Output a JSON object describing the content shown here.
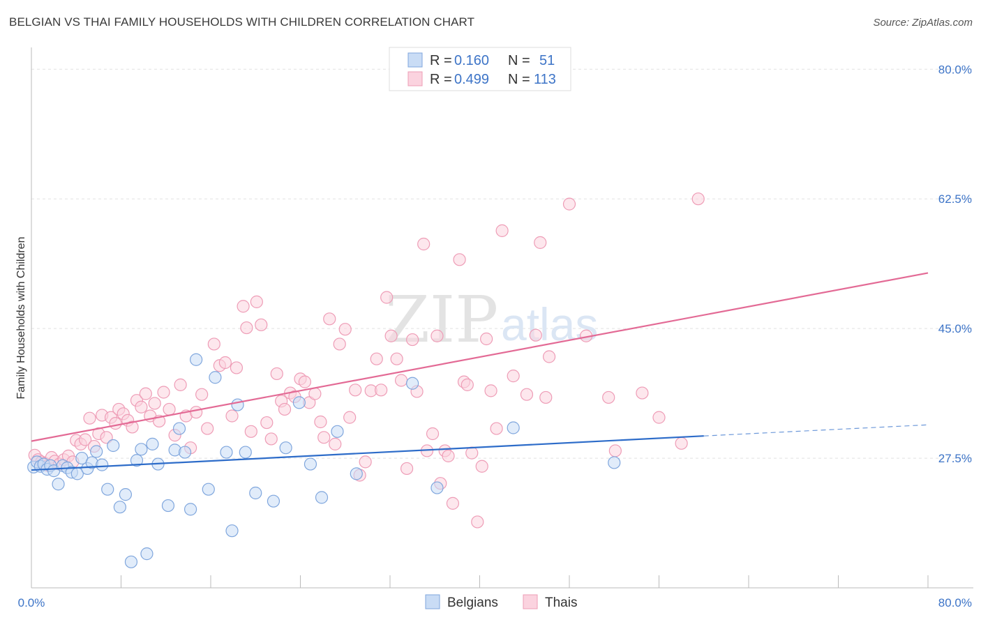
{
  "header": {
    "title": "BELGIAN VS THAI FAMILY HOUSEHOLDS WITH CHILDREN CORRELATION CHART",
    "source": "Source: ZipAtlas.com"
  },
  "watermark": {
    "zip": "ZIP",
    "atlas": "atlas"
  },
  "chart_data": {
    "type": "scatter",
    "title": "BELGIAN VS THAI FAMILY HOUSEHOLDS WITH CHILDREN CORRELATION CHART",
    "xlabel": "",
    "ylabel": "Family Households with Children",
    "xlim": [
      0,
      80
    ],
    "ylim": [
      10,
      82
    ],
    "x_tick_labels": [
      "0.0%",
      "80.0%"
    ],
    "y_ticks": [
      {
        "value": 27.5,
        "label": "27.5%"
      },
      {
        "value": 45.0,
        "label": "45.0%"
      },
      {
        "value": 62.5,
        "label": "62.5%"
      },
      {
        "value": 80.0,
        "label": "80.0%"
      }
    ],
    "colors": {
      "belgians_fill": "#c9dcf5",
      "belgians_stroke": "#7fa6dd",
      "belgians_line": "#2d6cc9",
      "thais_fill": "#fbd3df",
      "thais_stroke": "#ee9cb6",
      "thais_line": "#e36a95",
      "axis_text": "#3d74c7",
      "grid": "#e2e2e2"
    },
    "legend": {
      "r_label": "R =",
      "n_label": "N =",
      "entries": [
        {
          "series": "Belgians",
          "r": "0.160",
          "n": "51"
        },
        {
          "series": "Thais",
          "r": "0.499",
          "n": "113"
        }
      ]
    },
    "series": [
      {
        "name": "Belgians",
        "trend": {
          "x0": 0,
          "y0": 25.9,
          "x1": 60,
          "y1": 30.5,
          "x_dash_end": 80,
          "y_dash_end": 32.0
        },
        "points": [
          [
            0.2,
            26.3
          ],
          [
            0.5,
            27.0
          ],
          [
            0.8,
            26.4
          ],
          [
            1.1,
            26.7
          ],
          [
            1.4,
            26.0
          ],
          [
            1.7,
            26.5
          ],
          [
            2.0,
            25.8
          ],
          [
            2.4,
            24.0
          ],
          [
            2.8,
            26.5
          ],
          [
            3.2,
            26.2
          ],
          [
            3.6,
            25.6
          ],
          [
            4.1,
            25.4
          ],
          [
            4.5,
            27.5
          ],
          [
            5.0,
            26.1
          ],
          [
            5.4,
            26.9
          ],
          [
            5.8,
            28.4
          ],
          [
            6.3,
            26.6
          ],
          [
            6.8,
            23.3
          ],
          [
            7.3,
            29.2
          ],
          [
            7.9,
            20.9
          ],
          [
            8.4,
            22.6
          ],
          [
            8.9,
            13.5
          ],
          [
            9.4,
            27.2
          ],
          [
            9.8,
            28.7
          ],
          [
            10.3,
            14.6
          ],
          [
            10.8,
            29.4
          ],
          [
            11.3,
            26.7
          ],
          [
            12.2,
            21.1
          ],
          [
            12.8,
            28.6
          ],
          [
            13.2,
            31.5
          ],
          [
            13.7,
            28.3
          ],
          [
            14.2,
            20.6
          ],
          [
            14.7,
            40.8
          ],
          [
            15.8,
            23.3
          ],
          [
            16.4,
            38.4
          ],
          [
            17.4,
            28.3
          ],
          [
            17.9,
            17.7
          ],
          [
            18.4,
            34.7
          ],
          [
            19.1,
            28.3
          ],
          [
            20.0,
            22.8
          ],
          [
            21.6,
            21.7
          ],
          [
            22.7,
            28.9
          ],
          [
            23.9,
            35.0
          ],
          [
            24.9,
            26.7
          ],
          [
            25.9,
            22.2
          ],
          [
            27.3,
            31.1
          ],
          [
            29.0,
            25.4
          ],
          [
            34.0,
            37.6
          ],
          [
            36.2,
            23.5
          ],
          [
            43.0,
            31.6
          ],
          [
            52.0,
            26.9
          ]
        ]
      },
      {
        "name": "Thais",
        "trend": {
          "x0": 0,
          "y0": 29.8,
          "x1": 80,
          "y1": 52.5
        },
        "points": [
          [
            0.3,
            27.9
          ],
          [
            0.6,
            27.3
          ],
          [
            0.9,
            27.0
          ],
          [
            1.2,
            26.8
          ],
          [
            1.5,
            26.5
          ],
          [
            1.8,
            27.6
          ],
          [
            2.1,
            27.1
          ],
          [
            2.5,
            26.7
          ],
          [
            2.9,
            27.3
          ],
          [
            3.3,
            27.8
          ],
          [
            3.7,
            27.0
          ],
          [
            4.0,
            29.9
          ],
          [
            4.4,
            29.4
          ],
          [
            4.8,
            30.0
          ],
          [
            5.2,
            32.9
          ],
          [
            5.6,
            29.1
          ],
          [
            6.0,
            30.8
          ],
          [
            6.3,
            33.3
          ],
          [
            6.7,
            30.3
          ],
          [
            7.1,
            33.0
          ],
          [
            7.5,
            32.2
          ],
          [
            7.8,
            34.1
          ],
          [
            8.2,
            33.5
          ],
          [
            8.6,
            32.6
          ],
          [
            9.0,
            31.7
          ],
          [
            9.4,
            35.3
          ],
          [
            9.8,
            34.4
          ],
          [
            10.2,
            36.2
          ],
          [
            10.6,
            33.2
          ],
          [
            11.0,
            34.9
          ],
          [
            11.4,
            32.5
          ],
          [
            11.8,
            36.4
          ],
          [
            12.3,
            34.1
          ],
          [
            12.8,
            30.6
          ],
          [
            13.3,
            37.4
          ],
          [
            13.8,
            33.2
          ],
          [
            14.2,
            28.9
          ],
          [
            14.7,
            33.7
          ],
          [
            15.2,
            36.1
          ],
          [
            15.7,
            31.5
          ],
          [
            16.3,
            42.9
          ],
          [
            16.8,
            40.0
          ],
          [
            17.3,
            40.4
          ],
          [
            17.9,
            33.2
          ],
          [
            18.3,
            39.7
          ],
          [
            18.9,
            48.0
          ],
          [
            19.2,
            45.1
          ],
          [
            19.6,
            31.1
          ],
          [
            20.1,
            48.6
          ],
          [
            20.5,
            45.5
          ],
          [
            21.0,
            32.3
          ],
          [
            21.4,
            30.1
          ],
          [
            21.9,
            38.9
          ],
          [
            22.3,
            35.2
          ],
          [
            22.6,
            34.1
          ],
          [
            23.1,
            36.3
          ],
          [
            23.5,
            35.8
          ],
          [
            24.0,
            38.2
          ],
          [
            24.4,
            37.8
          ],
          [
            24.8,
            35.0
          ],
          [
            25.3,
            36.2
          ],
          [
            25.8,
            32.4
          ],
          [
            26.1,
            30.3
          ],
          [
            26.6,
            46.3
          ],
          [
            27.1,
            29.4
          ],
          [
            27.5,
            42.9
          ],
          [
            28.0,
            44.9
          ],
          [
            28.4,
            33.0
          ],
          [
            28.9,
            36.7
          ],
          [
            29.3,
            25.2
          ],
          [
            29.8,
            27.0
          ],
          [
            30.3,
            36.6
          ],
          [
            30.8,
            40.9
          ],
          [
            31.2,
            36.7
          ],
          [
            31.7,
            49.2
          ],
          [
            32.1,
            44.0
          ],
          [
            32.6,
            40.9
          ],
          [
            33.0,
            38.0
          ],
          [
            33.5,
            26.1
          ],
          [
            34.0,
            43.5
          ],
          [
            34.4,
            36.5
          ],
          [
            35.0,
            56.4
          ],
          [
            35.3,
            28.5
          ],
          [
            35.8,
            30.8
          ],
          [
            36.2,
            44.0
          ],
          [
            36.5,
            24.1
          ],
          [
            36.9,
            28.5
          ],
          [
            37.2,
            27.8
          ],
          [
            37.6,
            21.4
          ],
          [
            38.2,
            54.3
          ],
          [
            38.6,
            37.8
          ],
          [
            38.9,
            37.4
          ],
          [
            39.3,
            28.2
          ],
          [
            39.8,
            18.9
          ],
          [
            40.2,
            26.4
          ],
          [
            40.6,
            43.6
          ],
          [
            41.0,
            36.6
          ],
          [
            41.5,
            31.5
          ],
          [
            42.0,
            58.2
          ],
          [
            43.0,
            38.6
          ],
          [
            44.2,
            36.1
          ],
          [
            45.0,
            44.1
          ],
          [
            45.4,
            56.6
          ],
          [
            45.9,
            35.7
          ],
          [
            46.2,
            41.2
          ],
          [
            48.0,
            61.8
          ],
          [
            49.5,
            44.0
          ],
          [
            51.5,
            35.7
          ],
          [
            52.1,
            28.5
          ],
          [
            54.5,
            36.3
          ],
          [
            56.0,
            33.0
          ],
          [
            58.0,
            29.5
          ],
          [
            59.5,
            62.5
          ]
        ]
      }
    ]
  }
}
